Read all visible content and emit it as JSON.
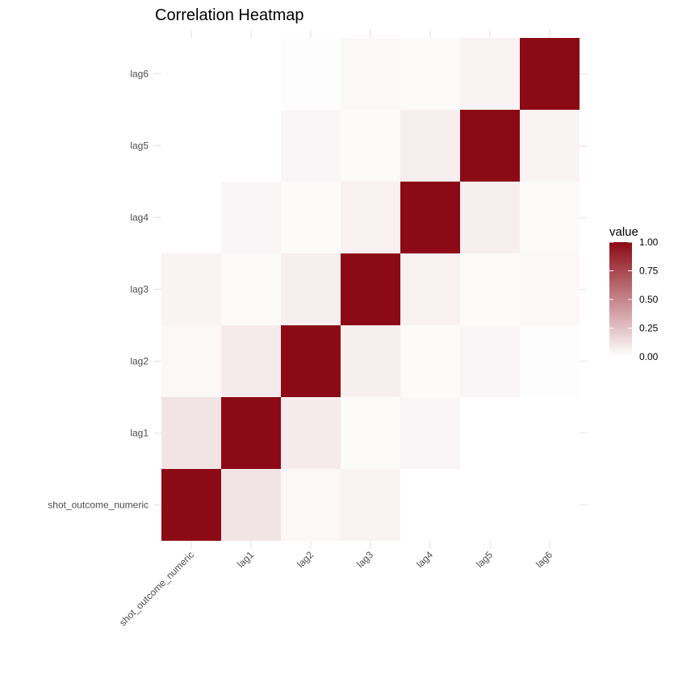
{
  "chart_data": {
    "type": "heatmap",
    "title": "Correlation Heatmap",
    "x": [
      "shot_outcome_numeric",
      "lag1",
      "lag2",
      "lag3",
      "lag4",
      "lag5",
      "lag6"
    ],
    "y": [
      "shot_outcome_numeric",
      "lag1",
      "lag2",
      "lag3",
      "lag4",
      "lag5",
      "lag6"
    ],
    "values": [
      [
        1.0,
        0.11,
        0.03,
        0.05,
        -0.01,
        0.0,
        0.0
      ],
      [
        0.11,
        1.0,
        0.08,
        0.02,
        0.04,
        0.0,
        0.0
      ],
      [
        0.03,
        0.08,
        1.0,
        0.07,
        0.02,
        0.04,
        0.01
      ],
      [
        0.05,
        0.02,
        0.07,
        1.0,
        0.06,
        0.02,
        0.03
      ],
      [
        -0.01,
        0.04,
        0.02,
        0.06,
        1.0,
        0.07,
        0.02
      ],
      [
        0.0,
        0.0,
        0.04,
        0.02,
        0.07,
        1.0,
        0.05
      ],
      [
        0.0,
        0.0,
        0.01,
        0.03,
        0.02,
        0.05,
        1.0
      ]
    ],
    "color_scale": {
      "low": "#ffffff",
      "high": "#8b0a15",
      "limits": [
        0,
        1
      ]
    },
    "legend": {
      "title": "value",
      "ticks": [
        "1.00",
        "0.75",
        "0.50",
        "0.25",
        "0.00"
      ],
      "tick_values": [
        1.0,
        0.75,
        0.5,
        0.25,
        0.0
      ],
      "position": "right"
    },
    "grid": true
  }
}
